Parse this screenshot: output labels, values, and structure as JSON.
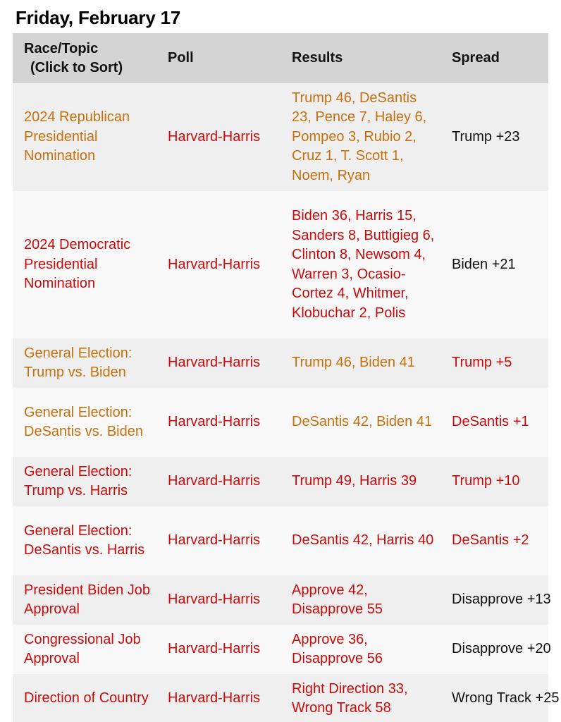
{
  "page": {
    "date_heading": "Friday, February 17"
  },
  "table": {
    "headers": {
      "race_line1": "Race/Topic",
      "race_line2": "(Click to Sort)",
      "poll": "Poll",
      "results": "Results",
      "spread": "Spread"
    },
    "rows": [
      {
        "race": "2024 Republican Presidential Nomination",
        "poll": "Harvard-Harris",
        "results": "Trump 46, DeSantis 23, Pence 7, Haley 6, Pompeo 3, Rubio 2, Cruz 1, T. Scott 1, Noem, Ryan",
        "spread": "Trump +23"
      },
      {
        "race": "2024 Democratic Presidential Nomination",
        "poll": "Harvard-Harris",
        "results": "Biden 36, Harris 15, Sanders 8, Buttigieg 6, Clinton 8, Newsom 4, Warren 3, Ocasio-Cortez 4, Whitmer, Klobuchar 2, Polis",
        "spread": "Biden +21"
      },
      {
        "race": "General Election: Trump vs. Biden",
        "poll": "Harvard-Harris",
        "results": "Trump 46, Biden 41",
        "spread": "Trump +5"
      },
      {
        "race": "General Election: DeSantis vs. Biden",
        "poll": "Harvard-Harris",
        "results": "DeSantis 42, Biden 41",
        "spread": "DeSantis +1"
      },
      {
        "race": "General Election: Trump vs. Harris",
        "poll": "Harvard-Harris",
        "results": "Trump 49, Harris 39",
        "spread": "Trump +10"
      },
      {
        "race": "General Election: DeSantis vs. Harris",
        "poll": "Harvard-Harris",
        "results": "DeSantis 42, Harris 40",
        "spread": "DeSantis +2"
      },
      {
        "race": "President Biden Job Approval",
        "poll": "Harvard-Harris",
        "results": "Approve 42, Disapprove 55",
        "spread": "Disapprove +13"
      },
      {
        "race": "Congressional Job Approval",
        "poll": "Harvard-Harris",
        "results": "Approve 36, Disapprove 56",
        "spread": "Disapprove +20"
      },
      {
        "race": "Direction of Country",
        "poll": "Harvard-Harris",
        "results": "Right Direction 33, Wrong Track 58",
        "spread": "Wrong Track +25"
      }
    ]
  },
  "colors": {
    "republican_orange": "#c8700c",
    "democrat_red": "#cc0a0a",
    "header_gray": "#d4d4d4",
    "row_odd": "#efefef",
    "row_even": "#f8f8f8"
  }
}
